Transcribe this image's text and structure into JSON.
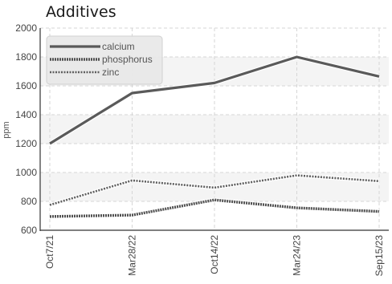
{
  "chart_data": {
    "type": "line",
    "title": "Additives",
    "xlabel": "",
    "ylabel": "ppm",
    "categories": [
      "Oct7/21",
      "Mar28/22",
      "Oct14/22",
      "Mar24/23",
      "Sep15/23"
    ],
    "ylim": [
      600,
      2000
    ],
    "yticks": [
      600,
      800,
      1000,
      1200,
      1400,
      1600,
      1800,
      2000
    ],
    "grid": true,
    "legend_position": "top-left",
    "series": [
      {
        "name": "calcium",
        "values": [
          1200,
          1550,
          1620,
          1800,
          1665
        ],
        "color": "#5a5a5a",
        "style": "solid"
      },
      {
        "name": "phosphorus",
        "values": [
          695,
          705,
          810,
          755,
          730
        ],
        "color": "#505050",
        "style": "dashed-heavy"
      },
      {
        "name": "zinc",
        "values": [
          775,
          945,
          895,
          980,
          940
        ],
        "color": "#5e5e5e",
        "style": "dashed"
      }
    ]
  }
}
